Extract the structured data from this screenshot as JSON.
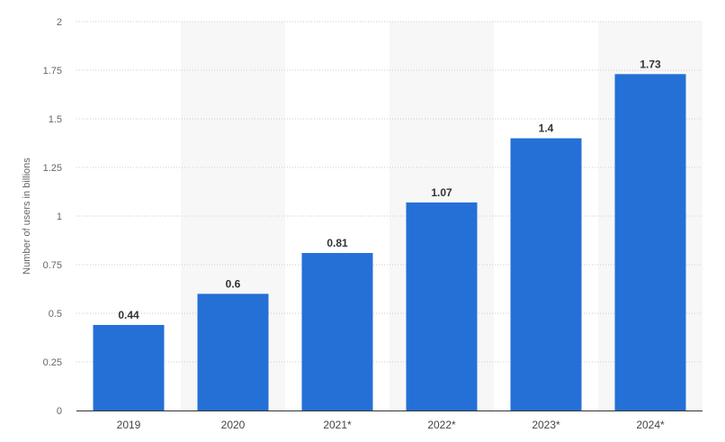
{
  "chart_data": {
    "type": "bar",
    "categories": [
      "2019",
      "2020",
      "2021*",
      "2022*",
      "2023*",
      "2024*"
    ],
    "values": [
      0.44,
      0.6,
      0.81,
      1.07,
      1.4,
      1.73
    ],
    "data_labels": [
      "0.44",
      "0.6",
      "0.81",
      "1.07",
      "1.4",
      "1.73"
    ],
    "title": "",
    "xlabel": "",
    "ylabel": "Number of users in billions",
    "ylim": [
      0,
      2
    ],
    "yticks": [
      0,
      0.25,
      0.5,
      0.75,
      1,
      1.25,
      1.5,
      1.75,
      2
    ],
    "ytick_labels": [
      "0",
      "0.25",
      "0.5",
      "0.75",
      "1",
      "1.25",
      "1.5",
      "1.75",
      "2"
    ],
    "grid": true,
    "alternating_band_color": "#f7f7f7",
    "bar_color": "#2470d6",
    "grid_color": "#cccccc",
    "axis_color": "#333333"
  }
}
